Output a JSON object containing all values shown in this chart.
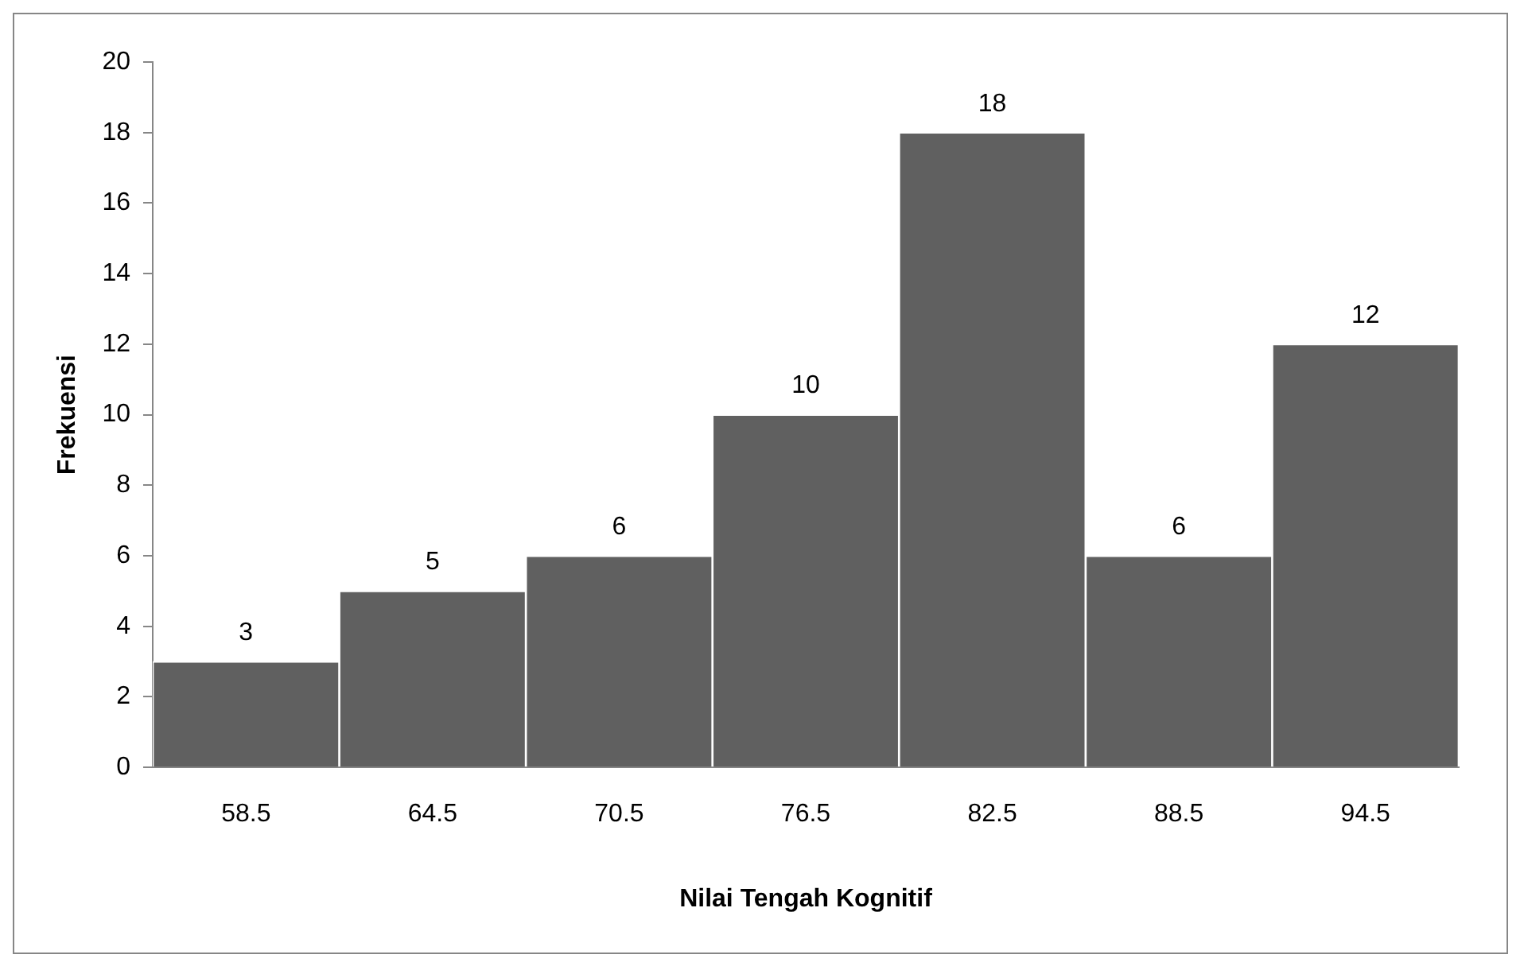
{
  "chart_data": {
    "type": "bar",
    "xlabel": "Nilai Tengah Kognitif",
    "ylabel": "Frekuensi",
    "categories": [
      "58.5",
      "64.5",
      "70.5",
      "76.5",
      "82.5",
      "88.5",
      "94.5"
    ],
    "values": [
      3,
      5,
      6,
      10,
      18,
      6,
      12
    ],
    "color": "#606060",
    "ylim": [
      0,
      20
    ],
    "yticks": [
      0,
      2,
      4,
      6,
      8,
      10,
      12,
      14,
      16,
      18,
      20
    ],
    "grid": false,
    "legend": false,
    "data_labels": true
  }
}
